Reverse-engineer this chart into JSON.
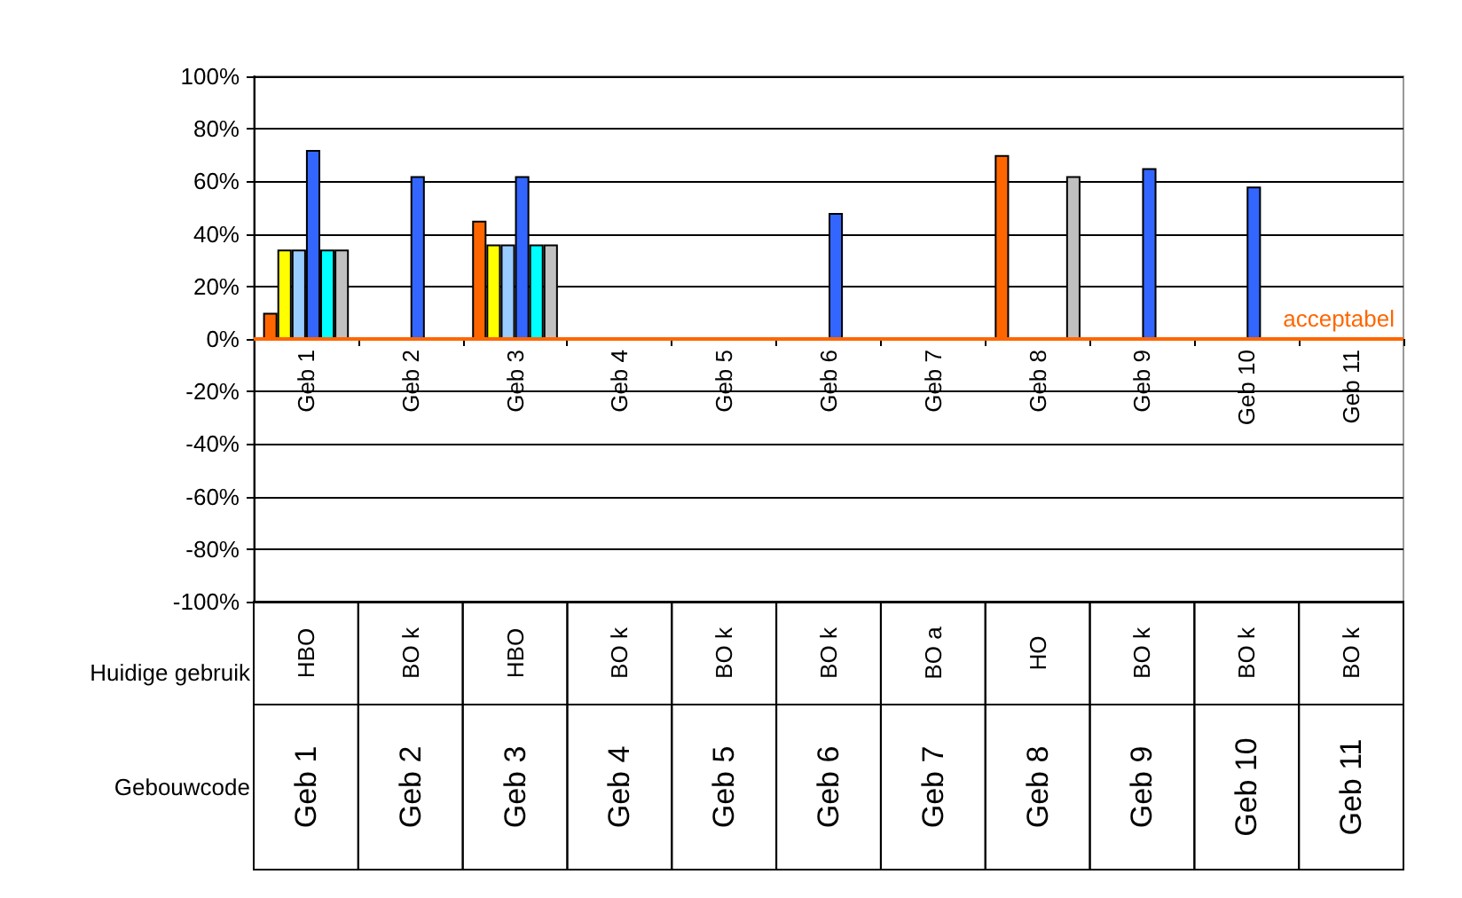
{
  "chart_data": {
    "type": "bar",
    "categories": [
      "Geb 1",
      "Geb 2",
      "Geb 3",
      "Geb 4",
      "Geb 5",
      "Geb 6",
      "Geb 7",
      "Geb 8",
      "Geb 9",
      "Geb 10",
      "Geb 11"
    ],
    "series": [
      {
        "color": "#ff6600",
        "values": [
          10,
          null,
          45,
          null,
          null,
          null,
          null,
          70,
          null,
          null,
          null
        ]
      },
      {
        "color": "#ffff00",
        "values": [
          34,
          null,
          36,
          null,
          null,
          null,
          null,
          null,
          null,
          null,
          null
        ]
      },
      {
        "color": "#99ccff",
        "values": [
          34,
          null,
          36,
          null,
          null,
          null,
          null,
          null,
          null,
          null,
          null
        ]
      },
      {
        "color": "#3366ff",
        "values": [
          72,
          62,
          62,
          null,
          null,
          48,
          null,
          null,
          65,
          58,
          null
        ]
      },
      {
        "color": "#00ffff",
        "values": [
          34,
          null,
          36,
          null,
          null,
          null,
          null,
          null,
          null,
          null,
          null
        ]
      },
      {
        "color": "#c0c0c0",
        "values": [
          34,
          null,
          36,
          null,
          null,
          null,
          null,
          62,
          null,
          null,
          null
        ]
      }
    ],
    "ylim": [
      -100,
      100
    ],
    "yticks": [
      {
        "value": -100,
        "label": "-100%"
      },
      {
        "value": -80,
        "label": "-80%"
      },
      {
        "value": -60,
        "label": "-60%"
      },
      {
        "value": -40,
        "label": "-40%"
      },
      {
        "value": -20,
        "label": "-20%"
      },
      {
        "value": 0,
        "label": "0%"
      },
      {
        "value": 20,
        "label": "20%"
      },
      {
        "value": 40,
        "label": "40%"
      },
      {
        "value": 60,
        "label": "60%"
      },
      {
        "value": 80,
        "label": "80%"
      },
      {
        "value": 100,
        "label": "100%"
      }
    ],
    "grid": "y",
    "ref_lines": [
      {
        "axis": "y",
        "value": 0,
        "label": "acceptabel",
        "color": "#ff6600"
      }
    ],
    "annotations": [
      "Huidige gebruik",
      "Gebouwcode",
      "HBO",
      "BO k",
      "HBO",
      "BO k",
      "BO k",
      "BO k",
      "BO a",
      "HO",
      "BO k",
      "BO k",
      "BO k"
    ]
  }
}
